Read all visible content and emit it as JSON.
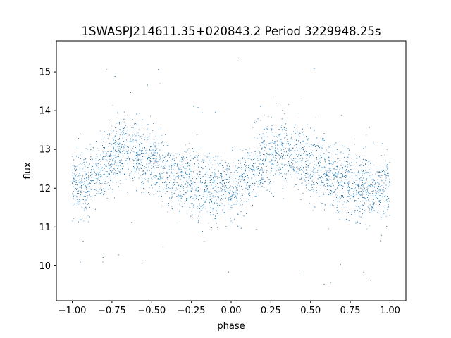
{
  "chart_data": {
    "type": "scatter",
    "title": "1SWASPJ214611.35+020843.2 Period 3229948.25s",
    "xlabel": "phase",
    "ylabel": "flux",
    "xlim": [
      -1.1,
      1.1
    ],
    "ylim": [
      9.1,
      15.8
    ],
    "xticks": [
      -1.0,
      -0.75,
      -0.5,
      -0.25,
      0.0,
      0.25,
      0.5,
      0.75,
      1.0
    ],
    "xtick_labels": [
      "−1.00",
      "−0.75",
      "−0.50",
      "−0.25",
      "0.00",
      "0.25",
      "0.50",
      "0.75",
      "1.00"
    ],
    "yticks": [
      10,
      11,
      12,
      13,
      14,
      15
    ],
    "ytick_labels": [
      "10",
      "11",
      "12",
      "13",
      "14",
      "15"
    ],
    "grid": false,
    "marker_color": "#1f77b4",
    "series": [
      {
        "trend": {
          "x": [
            -1.0,
            -0.9,
            -0.8,
            -0.75,
            -0.7,
            -0.65,
            -0.6,
            -0.55,
            -0.5,
            -0.45,
            -0.4,
            -0.35,
            -0.3,
            -0.25,
            -0.2,
            -0.15,
            -0.1,
            -0.05,
            0.0,
            0.05,
            0.1,
            0.15,
            0.2,
            0.25,
            0.3,
            0.35,
            0.4,
            0.45,
            0.5,
            0.55,
            0.6,
            0.65,
            0.7,
            0.75,
            0.8,
            0.85,
            0.9,
            0.95,
            1.0
          ],
          "y": [
            12.1,
            12.2,
            12.5,
            12.8,
            13.0,
            13.0,
            12.9,
            12.8,
            12.7,
            12.5,
            12.4,
            12.3,
            12.2,
            12.1,
            12.0,
            12.0,
            12.0,
            12.0,
            12.0,
            12.1,
            12.2,
            12.4,
            12.7,
            12.9,
            13.0,
            13.0,
            12.9,
            12.8,
            12.6,
            12.5,
            12.4,
            12.3,
            12.2,
            12.1,
            12.0,
            12.0,
            12.0,
            12.0,
            12.1
          ]
        },
        "n_points": 9000,
        "scatter_sd": 0.42,
        "outlier_fraction": 0.015
      }
    ]
  }
}
